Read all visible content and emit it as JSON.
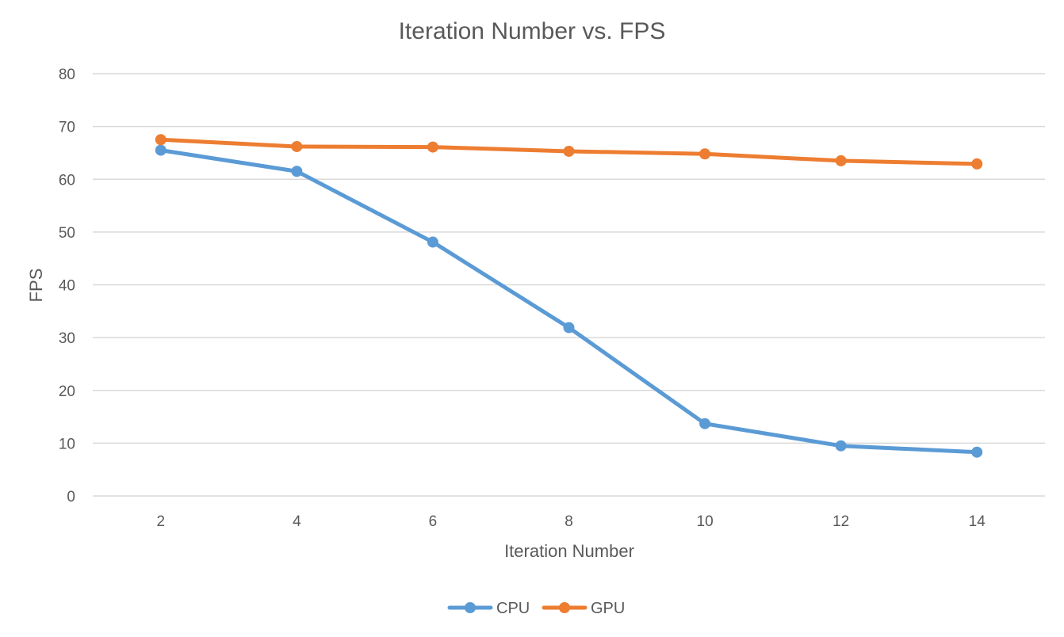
{
  "chart_data": {
    "type": "line",
    "title": "Iteration Number vs. FPS",
    "xlabel": "Iteration Number",
    "ylabel": "FPS",
    "x": [
      2,
      4,
      6,
      8,
      10,
      12,
      14
    ],
    "ylim": [
      0,
      80
    ],
    "yticks": [
      0,
      10,
      20,
      30,
      40,
      50,
      60,
      70,
      80
    ],
    "grid": true,
    "legend_position": "bottom",
    "series": [
      {
        "name": "CPU",
        "color": "#5b9bd5",
        "values": [
          65.5,
          61.5,
          48.1,
          31.9,
          13.7,
          9.5,
          8.3
        ]
      },
      {
        "name": "GPU",
        "color": "#ed7d31",
        "values": [
          67.5,
          66.2,
          66.1,
          65.3,
          64.8,
          63.5,
          62.9
        ]
      }
    ]
  }
}
